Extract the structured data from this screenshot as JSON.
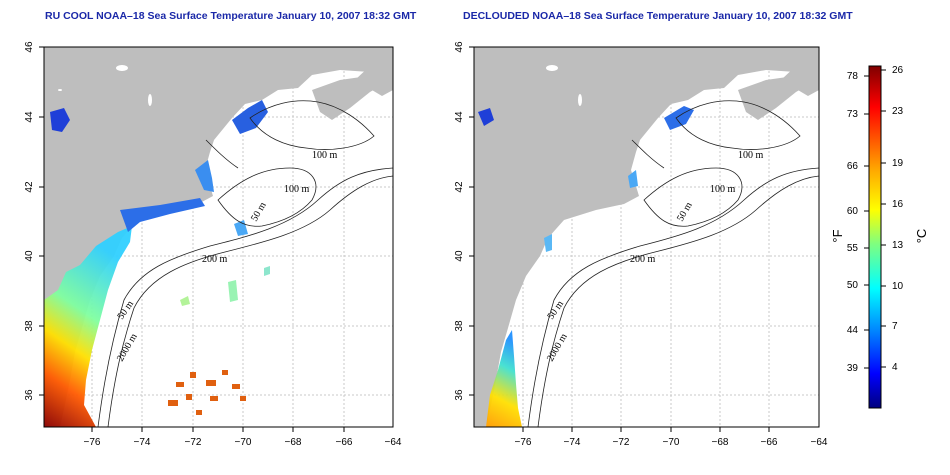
{
  "panels": [
    {
      "title": "RU COOL NOAA–18 Sea Surface Temperature January 10, 2007 18:32 GMT",
      "contour_labels": [
        "100 m",
        "100 m",
        "50 m",
        "200 m",
        "50 m",
        "2000 m"
      ]
    },
    {
      "title": "DECLOUDED NOAA–18 Sea Surface Temperature January 10, 2007 18:32 GMT",
      "contour_labels": [
        "100 m",
        "100 m",
        "50 m",
        "200 m",
        "50 m",
        "2000 m"
      ]
    }
  ],
  "axes": {
    "x_ticks": [
      "−76",
      "−74",
      "−72",
      "−70",
      "−68",
      "−66",
      "−64"
    ],
    "y_ticks": [
      "36",
      "38",
      "40",
      "42",
      "44",
      "46"
    ]
  },
  "colorbar": {
    "fahrenheit_label": "°F",
    "celsius_label": "°C",
    "fahrenheit_ticks": [
      "78",
      "73",
      "66",
      "60",
      "55",
      "50",
      "44",
      "39"
    ],
    "celsius_ticks": [
      "26",
      "23",
      "19",
      "16",
      "13",
      "10",
      "7",
      "4"
    ],
    "colors": [
      "#7f0000",
      "#ff0000",
      "#ffa500",
      "#ffff00",
      "#7fff7f",
      "#00ffff",
      "#007fff",
      "#0000ff",
      "#00007f"
    ]
  },
  "colors": {
    "land": "#bebebe",
    "grid": "#c8c8c8"
  }
}
